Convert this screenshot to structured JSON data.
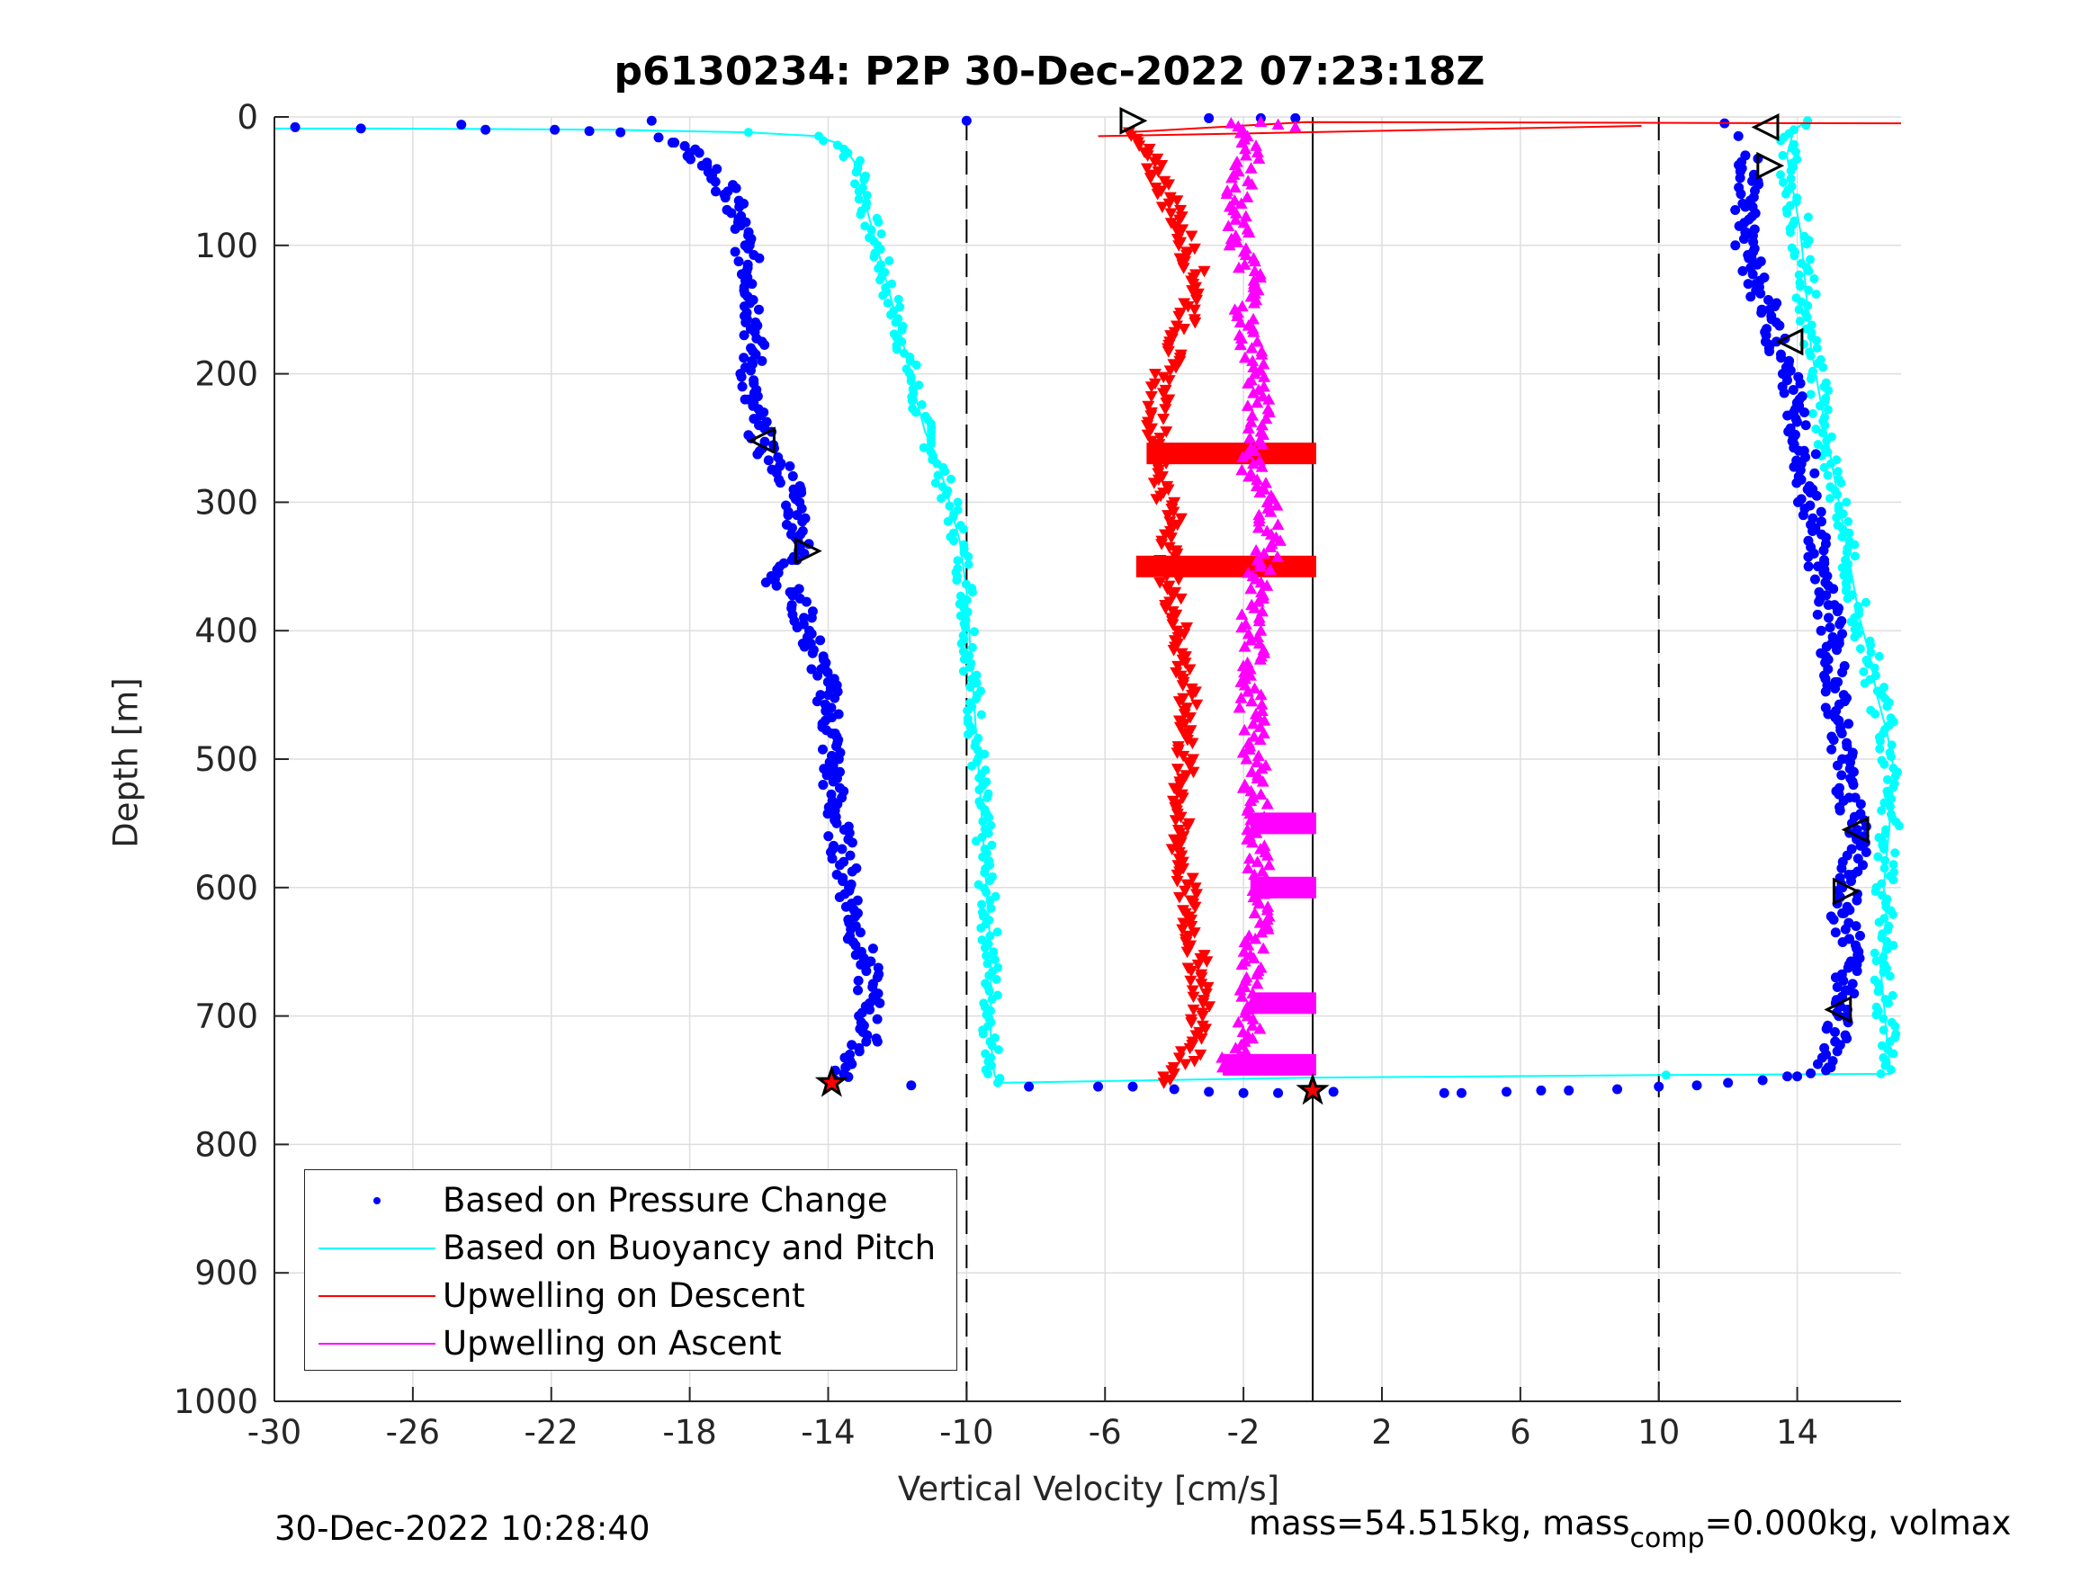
{
  "title": "p6130234: P2P 30-Dec-2022 07:23:18Z",
  "footer": {
    "timestamp": "30-Dec-2022 10:28:40",
    "mass_text": "mass=54.515kg, mass",
    "mass_sub": "comp",
    "mass_rest": "=0.000kg, volmax"
  },
  "chart_data": {
    "type": "scatter",
    "title": "p6130234: P2P 30-Dec-2022 07:23:18Z",
    "xlabel": "Vertical Velocity [cm/s]",
    "ylabel": "Depth [m]",
    "xlim": [
      -30,
      17
    ],
    "ylim": [
      0,
      1000
    ],
    "y_reversed": true,
    "grid": true,
    "xticks": [
      -30,
      -26,
      -22,
      -18,
      -14,
      -10,
      -6,
      -2,
      2,
      6,
      10,
      14
    ],
    "yticks": [
      0,
      100,
      200,
      300,
      400,
      500,
      600,
      700,
      800,
      900,
      1000
    ],
    "reference_lines": [
      {
        "x": -10,
        "style": "dashed"
      },
      {
        "x": 0,
        "style": "solid"
      },
      {
        "x": 10,
        "style": "dashed"
      }
    ],
    "legend_position": "bottom-left",
    "series": [
      {
        "name": "Based on Pressure Change",
        "color": "#0000ff",
        "marker": "dot",
        "points": [
          [
            -29.4,
            8
          ],
          [
            -27.5,
            9
          ],
          [
            -24.6,
            6
          ],
          [
            -23.9,
            10
          ],
          [
            -21.9,
            10
          ],
          [
            -20.9,
            11
          ],
          [
            -20.0,
            12
          ],
          [
            -19.1,
            3
          ],
          [
            -18.9,
            16
          ],
          [
            -18.5,
            20
          ],
          [
            -18.0,
            28
          ],
          [
            -17.5,
            38
          ],
          [
            -16.9,
            58
          ],
          [
            -16.6,
            82
          ],
          [
            -16.4,
            100
          ],
          [
            -16.2,
            130
          ],
          [
            -16.1,
            160
          ],
          [
            -16.2,
            190
          ],
          [
            -16.3,
            220
          ],
          [
            -16.0,
            240
          ],
          [
            -15.9,
            258
          ],
          [
            -15.4,
            272
          ],
          [
            -15.0,
            290
          ],
          [
            -14.9,
            310
          ],
          [
            -14.8,
            325
          ],
          [
            -14.9,
            345
          ],
          [
            -15.6,
            360
          ],
          [
            -15.0,
            370
          ],
          [
            -14.7,
            390
          ],
          [
            -14.5,
            410
          ],
          [
            -14.2,
            430
          ],
          [
            -14.0,
            450
          ],
          [
            -13.9,
            480
          ],
          [
            -13.9,
            510
          ],
          [
            -13.8,
            540
          ],
          [
            -13.6,
            570
          ],
          [
            -13.4,
            600
          ],
          [
            -13.2,
            630
          ],
          [
            -12.9,
            660
          ],
          [
            -12.8,
            690
          ],
          [
            -12.9,
            720
          ],
          [
            -13.5,
            740
          ],
          [
            -13.8,
            750
          ],
          [
            -11.6,
            754
          ],
          [
            -8.2,
            755
          ],
          [
            -6.2,
            755
          ],
          [
            -5.2,
            755
          ],
          [
            -4.0,
            757
          ],
          [
            -3.0,
            759
          ],
          [
            -2.0,
            760
          ],
          [
            -1.0,
            760
          ],
          [
            0.6,
            759
          ],
          [
            3.8,
            760
          ],
          [
            4.3,
            760
          ],
          [
            5.6,
            759
          ],
          [
            6.6,
            758
          ],
          [
            7.4,
            758
          ],
          [
            8.8,
            757
          ],
          [
            10.0,
            755
          ],
          [
            11.1,
            754
          ],
          [
            12.0,
            752
          ],
          [
            13.0,
            750
          ],
          [
            14.0,
            747
          ],
          [
            14.9,
            740
          ],
          [
            15.1,
            720
          ],
          [
            15.2,
            700
          ],
          [
            15.4,
            680
          ],
          [
            15.5,
            660
          ],
          [
            15.5,
            640
          ],
          [
            15.3,
            620
          ],
          [
            15.6,
            590
          ],
          [
            15.7,
            560
          ],
          [
            15.5,
            530
          ],
          [
            15.3,
            500
          ],
          [
            15.2,
            470
          ],
          [
            15.1,
            440
          ],
          [
            15.0,
            410
          ],
          [
            14.9,
            380
          ],
          [
            14.6,
            350
          ],
          [
            14.5,
            320
          ],
          [
            14.3,
            290
          ],
          [
            14.2,
            260
          ],
          [
            13.9,
            230
          ],
          [
            13.7,
            200
          ],
          [
            13.4,
            175
          ],
          [
            13.2,
            150
          ],
          [
            12.8,
            130
          ],
          [
            12.6,
            110
          ],
          [
            12.5,
            90
          ],
          [
            12.5,
            70
          ],
          [
            12.7,
            50
          ],
          [
            12.5,
            30
          ],
          [
            12.3,
            15
          ],
          [
            11.9,
            5
          ],
          [
            -10.0,
            3
          ],
          [
            -3.0,
            1
          ],
          [
            -1.5,
            1
          ],
          [
            -0.5,
            1
          ]
        ]
      },
      {
        "name": "Based on Buoyancy and Pitch",
        "color": "#00ffff",
        "marker": "line+dot",
        "points": [
          [
            -30.0,
            9
          ],
          [
            -29.3,
            9
          ],
          [
            -26.6,
            9
          ],
          [
            -20.2,
            10
          ],
          [
            -18.3,
            11
          ],
          [
            -16.3,
            12
          ],
          [
            -14.3,
            15
          ],
          [
            -13.6,
            22
          ],
          [
            -13.1,
            40
          ],
          [
            -12.9,
            70
          ],
          [
            -12.6,
            100
          ],
          [
            -12.3,
            130
          ],
          [
            -12.0,
            160
          ],
          [
            -11.7,
            190
          ],
          [
            -11.5,
            215
          ],
          [
            -11.2,
            245
          ],
          [
            -10.8,
            270
          ],
          [
            -10.5,
            300
          ],
          [
            -10.2,
            330
          ],
          [
            -10.0,
            370
          ],
          [
            -9.9,
            410
          ],
          [
            -9.8,
            450
          ],
          [
            -9.7,
            490
          ],
          [
            -9.6,
            530
          ],
          [
            -9.5,
            570
          ],
          [
            -9.4,
            610
          ],
          [
            -9.3,
            650
          ],
          [
            -9.3,
            690
          ],
          [
            -9.3,
            720
          ],
          [
            -9.2,
            745
          ],
          [
            -9.1,
            752
          ],
          [
            0.0,
            748
          ],
          [
            10.0,
            746
          ],
          [
            16.7,
            745
          ],
          [
            16.6,
            720
          ],
          [
            16.5,
            690
          ],
          [
            16.4,
            660
          ],
          [
            16.6,
            630
          ],
          [
            16.5,
            600
          ],
          [
            16.6,
            570
          ],
          [
            16.7,
            540
          ],
          [
            16.8,
            510
          ],
          [
            16.6,
            480
          ],
          [
            16.3,
            450
          ],
          [
            16.1,
            420
          ],
          [
            15.8,
            390
          ],
          [
            15.6,
            360
          ],
          [
            15.4,
            330
          ],
          [
            15.2,
            300
          ],
          [
            15.0,
            270
          ],
          [
            14.8,
            240
          ],
          [
            14.6,
            210
          ],
          [
            14.4,
            180
          ],
          [
            14.3,
            150
          ],
          [
            14.2,
            120
          ],
          [
            14.1,
            90
          ],
          [
            13.9,
            60
          ],
          [
            13.7,
            30
          ],
          [
            13.9,
            10
          ],
          [
            14.3,
            3
          ]
        ]
      },
      {
        "name": "Upwelling on Descent",
        "color": "#ff0000",
        "marker": "triangle-down",
        "points": [
          [
            -5.4,
            12
          ],
          [
            -4.8,
            30
          ],
          [
            -4.3,
            55
          ],
          [
            -3.9,
            80
          ],
          [
            -3.6,
            105
          ],
          [
            -3.3,
            130
          ],
          [
            -3.6,
            155
          ],
          [
            -4.0,
            180
          ],
          [
            -4.4,
            210
          ],
          [
            -4.5,
            240
          ],
          [
            -4.4,
            262
          ],
          [
            -4.3,
            290
          ],
          [
            -4.0,
            320
          ],
          [
            -4.2,
            350
          ],
          [
            -4.0,
            380
          ],
          [
            -3.8,
            410
          ],
          [
            -3.7,
            440
          ],
          [
            -3.6,
            470
          ],
          [
            -3.7,
            500
          ],
          [
            -3.8,
            530
          ],
          [
            -3.9,
            560
          ],
          [
            -3.7,
            590
          ],
          [
            -3.6,
            620
          ],
          [
            -3.4,
            650
          ],
          [
            -3.2,
            680
          ],
          [
            -3.3,
            710
          ],
          [
            -3.6,
            735
          ],
          [
            -4.3,
            752
          ]
        ]
      },
      {
        "name": "Upwelling on Ascent",
        "color": "#ff00ff",
        "marker": "triangle-up",
        "points": [
          [
            -2.2,
            5
          ],
          [
            -1.7,
            20
          ],
          [
            -2.0,
            45
          ],
          [
            -2.3,
            70
          ],
          [
            -2.1,
            100
          ],
          [
            -1.7,
            130
          ],
          [
            -2.0,
            160
          ],
          [
            -1.6,
            190
          ],
          [
            -1.6,
            220
          ],
          [
            -1.5,
            250
          ],
          [
            -1.8,
            270
          ],
          [
            -1.3,
            300
          ],
          [
            -1.2,
            330
          ],
          [
            -1.6,
            360
          ],
          [
            -1.8,
            390
          ],
          [
            -1.7,
            420
          ],
          [
            -1.8,
            450
          ],
          [
            -1.7,
            480
          ],
          [
            -1.7,
            510
          ],
          [
            -1.6,
            540
          ],
          [
            -1.6,
            570
          ],
          [
            -1.5,
            600
          ],
          [
            -1.6,
            630
          ],
          [
            -1.7,
            660
          ],
          [
            -1.8,
            690
          ],
          [
            -1.9,
            720
          ],
          [
            -2.6,
            740
          ]
        ]
      }
    ],
    "horizontal_bands": [
      {
        "series": "Upwelling on Descent",
        "y": 262,
        "x_range": [
          -4.8,
          0.1
        ],
        "color": "#ff0000"
      },
      {
        "series": "Upwelling on Descent",
        "y": 350,
        "x_range": [
          -5.1,
          0.1
        ],
        "color": "#ff0000"
      },
      {
        "series": "Upwelling on Ascent",
        "y": 550,
        "x_range": [
          -1.8,
          0.1
        ],
        "color": "#ff00ff"
      },
      {
        "series": "Upwelling on Ascent",
        "y": 600,
        "x_range": [
          -1.8,
          0.1
        ],
        "color": "#ff00ff"
      },
      {
        "series": "Upwelling on Ascent",
        "y": 690,
        "x_range": [
          -1.8,
          0.1
        ],
        "color": "#ff00ff"
      },
      {
        "series": "Upwelling on Ascent",
        "y": 738,
        "x_range": [
          -2.6,
          0.1
        ],
        "color": "#ff00ff"
      }
    ],
    "event_markers": [
      {
        "x": -5.2,
        "y": 3,
        "shape": "triangle-right"
      },
      {
        "x": 13.1,
        "y": 8,
        "shape": "triangle-left"
      },
      {
        "x": 13.2,
        "y": 38,
        "shape": "triangle-right"
      },
      {
        "x": 13.8,
        "y": 175,
        "shape": "triangle-left"
      },
      {
        "x": -15.9,
        "y": 252,
        "shape": "triangle-left"
      },
      {
        "x": -14.6,
        "y": 338,
        "shape": "triangle-right"
      },
      {
        "x": 15.7,
        "y": 555,
        "shape": "triangle-left"
      },
      {
        "x": 15.4,
        "y": 603,
        "shape": "triangle-right"
      },
      {
        "x": 15.2,
        "y": 695,
        "shape": "triangle-left"
      },
      {
        "x": -13.9,
        "y": 752,
        "shape": "star"
      },
      {
        "x": 0.0,
        "y": 758,
        "shape": "star"
      }
    ]
  }
}
